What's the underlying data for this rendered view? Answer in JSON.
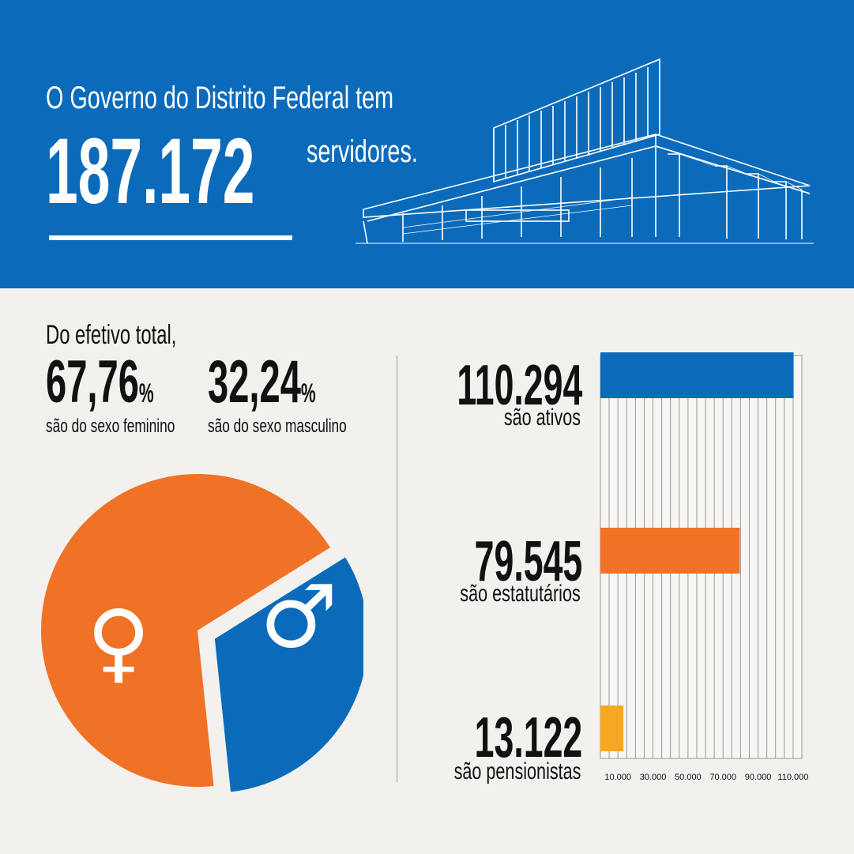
{
  "header": {
    "intro": "O Governo do Distrito Federal tem",
    "total": "187.172",
    "unit": "servidores."
  },
  "gender": {
    "intro": "Do efetivo total,",
    "female": {
      "value": "67,76",
      "sign": "%",
      "label": "são do sexo feminino",
      "symbol": "♀"
    },
    "male": {
      "value": "32,24",
      "sign": "%",
      "label": "são do sexo masculino",
      "symbol": "♂"
    }
  },
  "colors": {
    "blue": "#0b6bba",
    "orange": "#f07226",
    "yellow": "#f7a823",
    "background": "#f2f1ee"
  },
  "chart_data": [
    {
      "type": "pie",
      "slices": [
        {
          "name": "feminino",
          "value": 67.76,
          "color": "#f07226"
        },
        {
          "name": "masculino",
          "value": 32.24,
          "color": "#0b6bba"
        }
      ]
    },
    {
      "type": "bar",
      "orientation": "horizontal",
      "categories": [
        "são ativos",
        "são estatutários",
        "são pensionistas"
      ],
      "values": [
        110294,
        79545,
        13122
      ],
      "value_labels": [
        "110.294",
        "79.545",
        "13.122"
      ],
      "colors": [
        "#0b6bba",
        "#f07226",
        "#f7a823"
      ],
      "xlim": [
        0,
        115000
      ],
      "ticks": [
        10000,
        30000,
        50000,
        70000,
        90000,
        110000
      ],
      "tick_labels": [
        "10.000",
        "30.000",
        "50.000",
        "70.000",
        "90.000",
        "110.000"
      ],
      "grid": true
    }
  ]
}
